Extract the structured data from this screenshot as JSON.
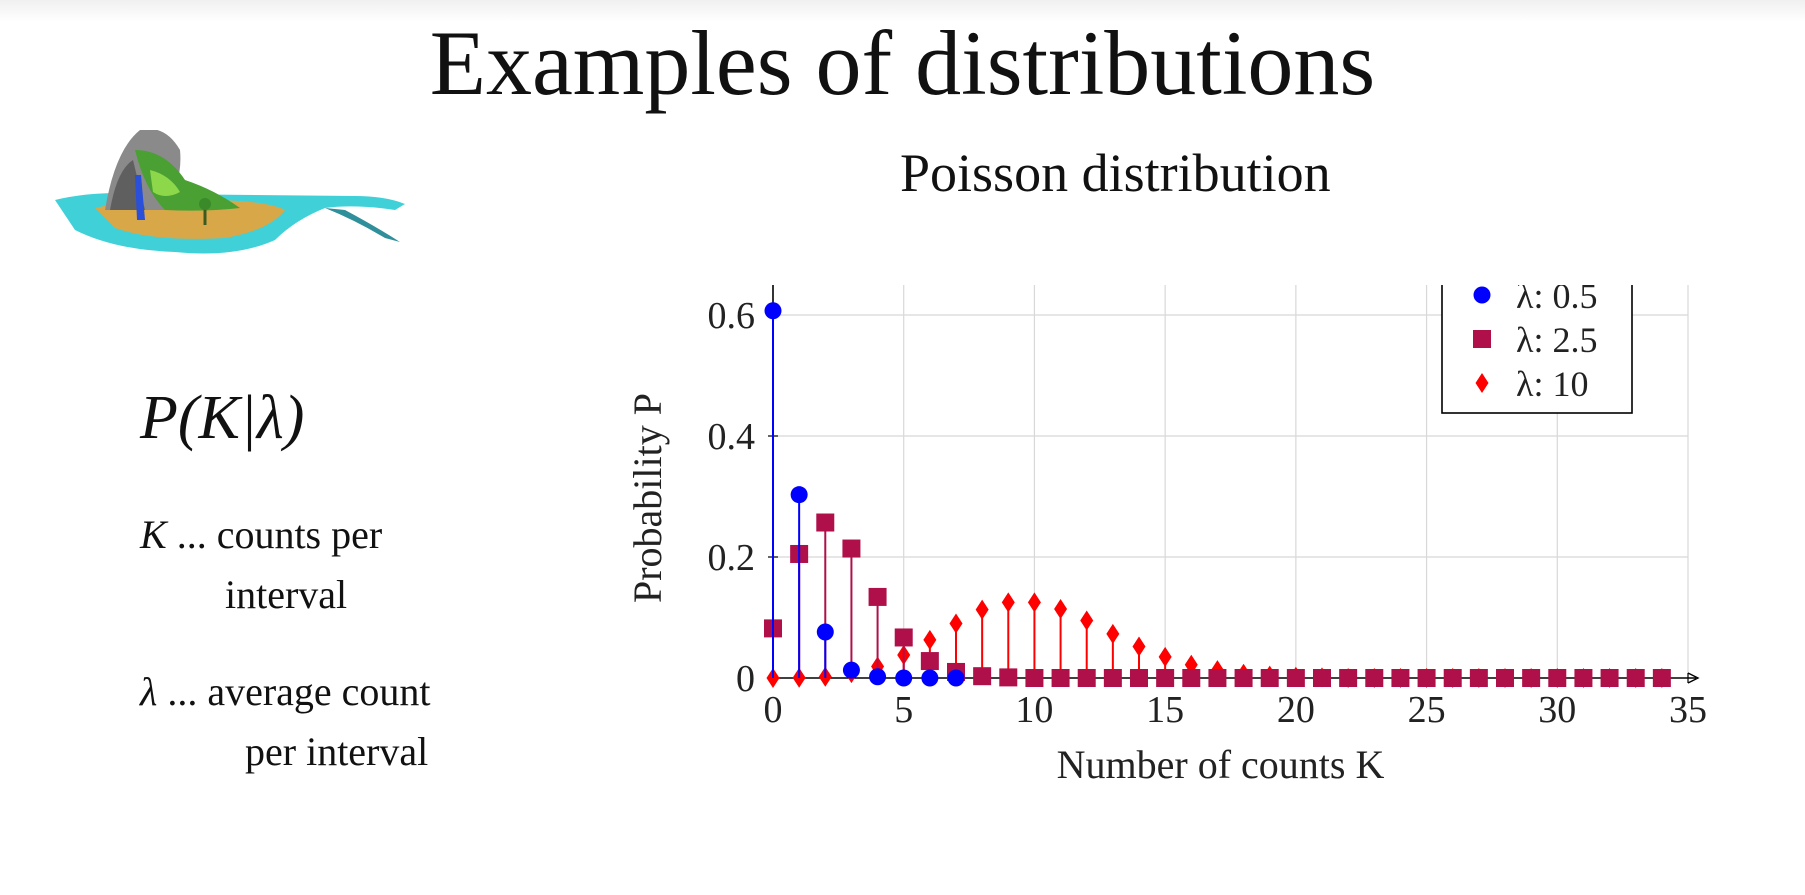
{
  "slide": {
    "title": "Examples of distributions",
    "subtitle": "Poisson distribution"
  },
  "formula": {
    "expression": "P(K|λ)"
  },
  "definitions": [
    {
      "symbol": "K",
      "text_line1": "... counts per",
      "text_line2": "interval"
    },
    {
      "symbol": "λ",
      "text_line1": "... average count",
      "text_line2": "per interval"
    }
  ],
  "colors": {
    "series_blue": "#0000ff",
    "series_crimson": "#b0104a",
    "series_red": "#ff0000",
    "grid": "#d8d8d8",
    "axis": "#000000"
  },
  "chart_data": {
    "type": "scatter",
    "style": "stem",
    "title": "",
    "xlabel": "Number of counts K",
    "ylabel": "Probability P",
    "xlim": [
      0,
      35
    ],
    "ylim": [
      0,
      0.7
    ],
    "xticks": [
      0,
      5,
      10,
      15,
      20,
      25,
      30,
      35
    ],
    "yticks": [
      0,
      0.2,
      0.4,
      0.6
    ],
    "ytick_labels": [
      "0",
      "0.2",
      "0.4",
      "0.6"
    ],
    "grid": true,
    "legend_position": "top-right",
    "x": [
      0,
      1,
      2,
      3,
      4,
      5,
      6,
      7,
      8,
      9,
      10,
      11,
      12,
      13,
      14,
      15,
      16,
      17,
      18,
      19,
      20,
      21,
      22,
      23,
      24,
      25,
      26,
      27,
      28,
      29,
      30,
      31,
      32,
      33,
      34
    ],
    "series": [
      {
        "name": "λ: 0.5",
        "marker": "circle",
        "color": "#0000ff",
        "values": [
          0.607,
          0.303,
          0.076,
          0.013,
          0.002,
          0.0,
          0.0,
          0.0
        ]
      },
      {
        "name": "λ: 2.5",
        "marker": "square",
        "color": "#b0104a",
        "values": [
          0.082,
          0.205,
          0.257,
          0.214,
          0.134,
          0.067,
          0.028,
          0.01,
          0.003,
          0.001,
          0.0,
          0.0,
          0.0,
          0.0,
          0.0,
          0.0,
          0.0,
          0.0,
          0.0,
          0.0,
          0.0,
          0.0,
          0.0,
          0.0,
          0.0,
          0.0,
          0.0,
          0.0,
          0.0,
          0.0,
          0.0,
          0.0,
          0.0,
          0.0,
          0.0
        ]
      },
      {
        "name": "λ: 10",
        "marker": "diamond",
        "color": "#ff0000",
        "values": [
          0.0,
          0.0005,
          0.002,
          0.008,
          0.019,
          0.038,
          0.063,
          0.09,
          0.113,
          0.125,
          0.125,
          0.114,
          0.095,
          0.073,
          0.052,
          0.035,
          0.022,
          0.013,
          0.007,
          0.004,
          0.002,
          0.001,
          0.0,
          0.0,
          0.0,
          0.0,
          0.0,
          0.0,
          0.0,
          0.0,
          0.0,
          0.0,
          0.0,
          0.0,
          0.0
        ]
      }
    ]
  }
}
